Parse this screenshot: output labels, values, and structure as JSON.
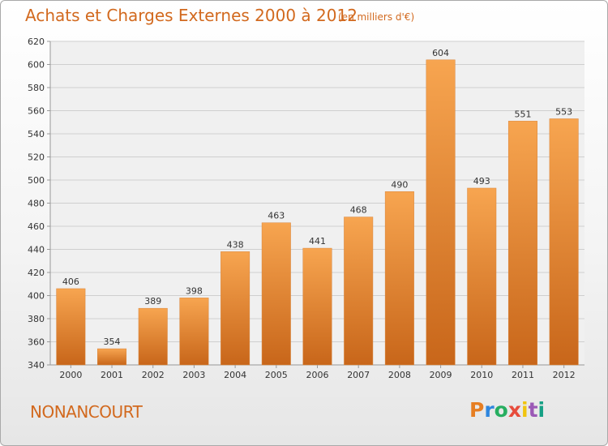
{
  "chart_data": {
    "type": "bar",
    "title": "Achats et Charges Externes 2000 à 2012",
    "subtitle": "(en milliers d'€)",
    "categories": [
      "2000",
      "2001",
      "2002",
      "2003",
      "2004",
      "2005",
      "2006",
      "2007",
      "2008",
      "2009",
      "2010",
      "2011",
      "2012"
    ],
    "values": [
      406,
      354,
      389,
      398,
      438,
      463,
      441,
      468,
      490,
      604,
      493,
      551,
      553
    ],
    "ylim": [
      340,
      620
    ],
    "yticks": [
      340,
      360,
      380,
      400,
      420,
      440,
      460,
      480,
      500,
      520,
      540,
      560,
      580,
      600,
      620
    ],
    "grid": true,
    "bar_color_top": "#f7a550",
    "bar_color_bottom": "#c8661a"
  },
  "footer": {
    "town": "NONANCOURT",
    "logo_text": "Proxiti",
    "logo_colors": [
      "#e67e22",
      "#2e86de",
      "#27ae60",
      "#e74c3c",
      "#f1c40f",
      "#9b59b6",
      "#16a085"
    ]
  }
}
